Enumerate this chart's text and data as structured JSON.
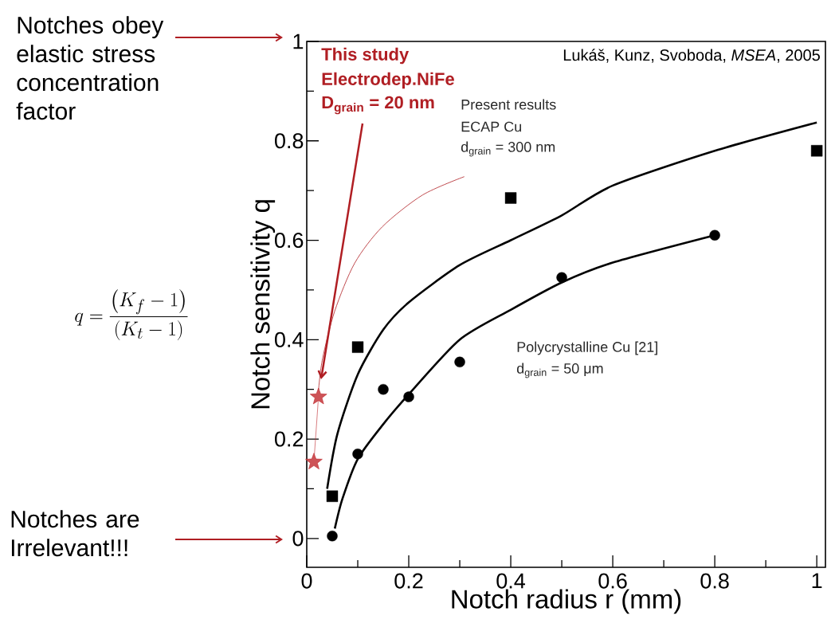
{
  "chart_data": {
    "type": "scatter",
    "xlabel": "Notch radius r (mm)",
    "ylabel": "Notch sensitivity q",
    "xlim": [
      0,
      1.017
    ],
    "ylim": [
      -0.058,
      1
    ],
    "xticks": [
      0,
      {
        "value": 0.1,
        "label": null
      },
      0.2,
      {
        "value": 0.3,
        "label": null
      },
      0.4,
      {
        "value": 0.5,
        "label": null
      },
      0.6,
      {
        "value": 0.7,
        "label": null
      },
      0.8,
      {
        "value": 0.9,
        "label": null
      },
      1
    ],
    "yticks": [
      0,
      {
        "value": 0.1,
        "label": null
      },
      0.2,
      {
        "value": 0.3,
        "label": null
      },
      0.4,
      {
        "value": 0.5,
        "label": null
      },
      0.6,
      {
        "value": 0.7,
        "label": null
      },
      0.8,
      {
        "value": 0.9,
        "label": null
      },
      1
    ],
    "series": [
      {
        "type": "line",
        "color": "#000000",
        "marker": "none",
        "x": [
          0.04,
          0.06,
          0.1,
          0.15,
          0.2,
          0.3,
          0.4,
          0.5,
          0.6,
          0.8,
          1.0
        ],
        "values": [
          0.1,
          0.21,
          0.33,
          0.42,
          0.475,
          0.55,
          0.6,
          0.65,
          0.71,
          0.78,
          0.837
        ]
      },
      {
        "type": "line",
        "color": "#000000",
        "marker": "none",
        "x": [
          0.055,
          0.07,
          0.1,
          0.15,
          0.2,
          0.3,
          0.4,
          0.5,
          0.6,
          0.8
        ],
        "values": [
          0.02,
          0.08,
          0.16,
          0.23,
          0.29,
          0.4,
          0.46,
          0.515,
          0.555,
          0.61
        ]
      },
      {
        "color": "#000000",
        "marker": "square",
        "x": [
          0.05,
          0.1,
          0.4,
          1.0
        ],
        "values": [
          0.085,
          0.385,
          0.685,
          0.78
        ]
      },
      {
        "color": "#000000",
        "marker": "circle",
        "x": [
          0.05,
          0.1,
          0.15,
          0.2,
          0.3,
          0.5,
          0.8
        ],
        "values": [
          0.005,
          0.17,
          0.3,
          0.285,
          0.355,
          0.525,
          0.61
        ]
      },
      {
        "type": "line",
        "color": "#b01e23",
        "marker": "none",
        "line_style": "solid",
        "x": [
          0.309,
          0.227,
          0.148,
          0.094,
          0.055,
          0.031,
          0.023
        ],
        "values": [
          0.728,
          0.691,
          0.627,
          0.554,
          0.458,
          0.362,
          0.298
        ]
      },
      {
        "type": "line",
        "color": "#c0282d",
        "marker": "star",
        "x": [
          0.014,
          0.023
        ],
        "values": [
          0.154,
          0.285
        ]
      }
    ],
    "annotations": [
      "Notches obey elastic stress concentration factor",
      "Notches are Irrelevant!!!",
      "q=\\frac{\\left(K_f-1\\right)}{\\left(K_t-1\\right)}",
      "This study",
      "Electrodep.NiFe",
      "D$_{grain}$ = 20 nm",
      "Present results",
      "ECAP Cu",
      "d$_{grain}$ = 300 nm",
      "Polycrystalline Cu [21]",
      "d$_{grain}$ = 50 μm",
      "Lukáš, Kunz, Svoboda, *MSEA*, 2005"
    ]
  }
}
